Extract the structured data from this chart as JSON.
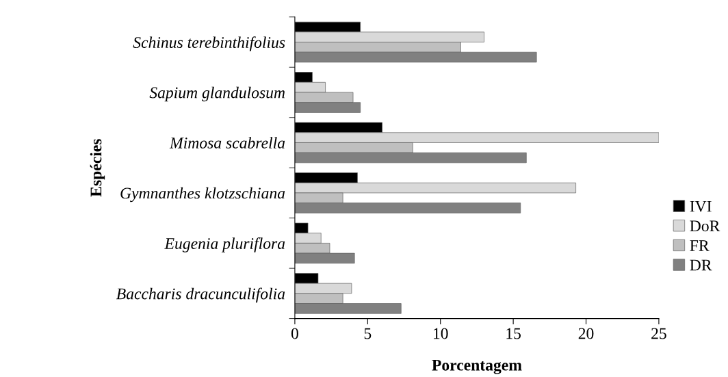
{
  "chart_data": {
    "type": "bar",
    "orientation": "horizontal",
    "xlabel": "Porcentagem",
    "ylabel": "Espécies",
    "categories": [
      "Schinus terebinthifolius",
      "Sapium glandulosum",
      "Mimosa scabrella",
      "Gymnanthes klotzschiana",
      "Eugenia pluriflora",
      "Baccharis dracunculifolia"
    ],
    "series": [
      {
        "name": "IVI",
        "color": "#000000",
        "values": [
          4.5,
          1.2,
          6.0,
          4.3,
          0.9,
          1.6
        ]
      },
      {
        "name": "DoR",
        "color": "#d9d9d9",
        "values": [
          13.0,
          2.1,
          25.0,
          19.3,
          1.8,
          3.9
        ]
      },
      {
        "name": "FR",
        "color": "#bfbfbf",
        "values": [
          11.4,
          4.0,
          8.1,
          3.3,
          2.4,
          3.3
        ]
      },
      {
        "name": "DR",
        "color": "#808080",
        "values": [
          16.6,
          4.5,
          15.9,
          15.5,
          4.1,
          7.3
        ]
      }
    ],
    "xlim": [
      0,
      25
    ],
    "xticks": [
      0,
      5,
      10,
      15,
      20,
      25
    ],
    "grid": false,
    "legend": "right"
  }
}
